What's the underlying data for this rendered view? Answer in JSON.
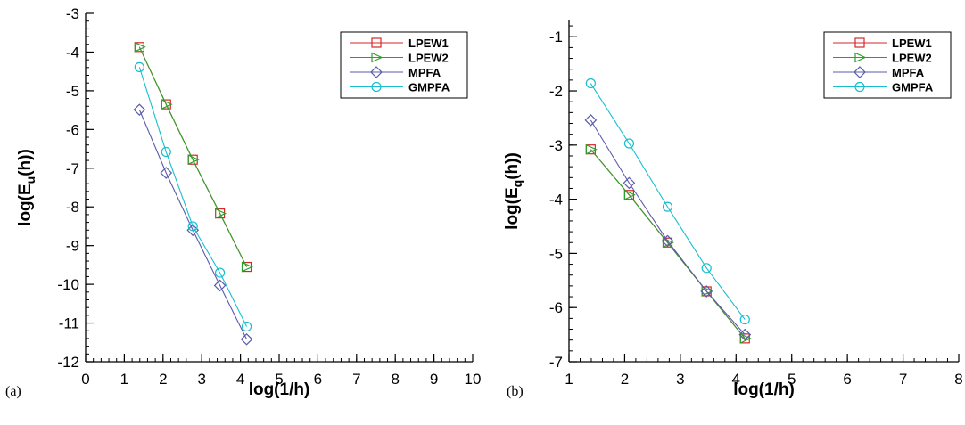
{
  "chart_data": [
    {
      "type": "line",
      "panel_label": "(a)",
      "xlabel": "log(1/h)",
      "ylabel_base": "log(E",
      "ylabel_sub": "u",
      "ylabel_tail": "(h))",
      "xlim": [
        0,
        10
      ],
      "ylim": [
        -12,
        -3
      ],
      "xticks": [
        0,
        1,
        2,
        3,
        4,
        5,
        6,
        7,
        8,
        9,
        10
      ],
      "yticks": [
        -12,
        -11,
        -10,
        -9,
        -8,
        -7,
        -6,
        -5,
        -4,
        -3
      ],
      "x_minor_step": 0.2,
      "y_minor_step": 0.2,
      "legend_position": "top-right",
      "series": [
        {
          "name": "LPEW1",
          "color": "#d62728",
          "marker": "square",
          "x": [
            1.39,
            2.08,
            2.77,
            3.47,
            4.16
          ],
          "y": [
            -3.87,
            -5.35,
            -6.78,
            -8.17,
            -9.55
          ]
        },
        {
          "name": "LPEW2",
          "color": "#2ca02c",
          "marker": "triangle-right",
          "x": [
            1.39,
            2.08,
            2.77,
            3.47,
            4.16
          ],
          "y": [
            -3.87,
            -5.35,
            -6.78,
            -8.17,
            -9.55
          ]
        },
        {
          "name": "MPFA",
          "color": "#5a5aaa",
          "marker": "diamond",
          "x": [
            1.39,
            2.08,
            2.77,
            3.47,
            4.16
          ],
          "y": [
            -5.49,
            -7.12,
            -8.6,
            -10.03,
            -11.42
          ]
        },
        {
          "name": "GMPFA",
          "color": "#17becf",
          "marker": "circle",
          "x": [
            1.39,
            2.08,
            2.77,
            3.47,
            4.16
          ],
          "y": [
            -4.39,
            -6.58,
            -8.5,
            -9.7,
            -11.09
          ]
        }
      ]
    },
    {
      "type": "line",
      "panel_label": "(b)",
      "xlabel": "log(1/h)",
      "ylabel_base": "log(E",
      "ylabel_sub": "q",
      "ylabel_tail": "(h))",
      "xlim": [
        1,
        8
      ],
      "ylim": [
        -7,
        -0.7
      ],
      "xticks": [
        1,
        2,
        3,
        4,
        5,
        6,
        7,
        8
      ],
      "yticks": [
        -7,
        -6,
        -5,
        -4,
        -3,
        -2,
        -1
      ],
      "x_minor_step": 0.2,
      "y_minor_step": 0.2,
      "legend_position": "top-right",
      "series": [
        {
          "name": "LPEW1",
          "color": "#d62728",
          "marker": "square",
          "x": [
            1.39,
            2.08,
            2.77,
            3.47,
            4.16
          ],
          "y": [
            -3.08,
            -3.92,
            -4.8,
            -5.7,
            -6.57
          ]
        },
        {
          "name": "LPEW2",
          "color": "#2ca02c",
          "marker": "triangle-right",
          "x": [
            1.39,
            2.08,
            2.77,
            3.47,
            4.16
          ],
          "y": [
            -3.08,
            -3.92,
            -4.8,
            -5.7,
            -6.57
          ]
        },
        {
          "name": "MPFA",
          "color": "#5a5aaa",
          "marker": "diamond",
          "x": [
            1.39,
            2.08,
            2.77,
            3.47,
            4.16
          ],
          "y": [
            -2.54,
            -3.7,
            -4.77,
            -5.7,
            -6.5
          ]
        },
        {
          "name": "GMPFA",
          "color": "#17becf",
          "marker": "circle",
          "x": [
            1.39,
            2.08,
            2.77,
            3.47,
            4.16
          ],
          "y": [
            -1.86,
            -2.97,
            -4.14,
            -5.27,
            -6.22
          ]
        }
      ]
    }
  ]
}
